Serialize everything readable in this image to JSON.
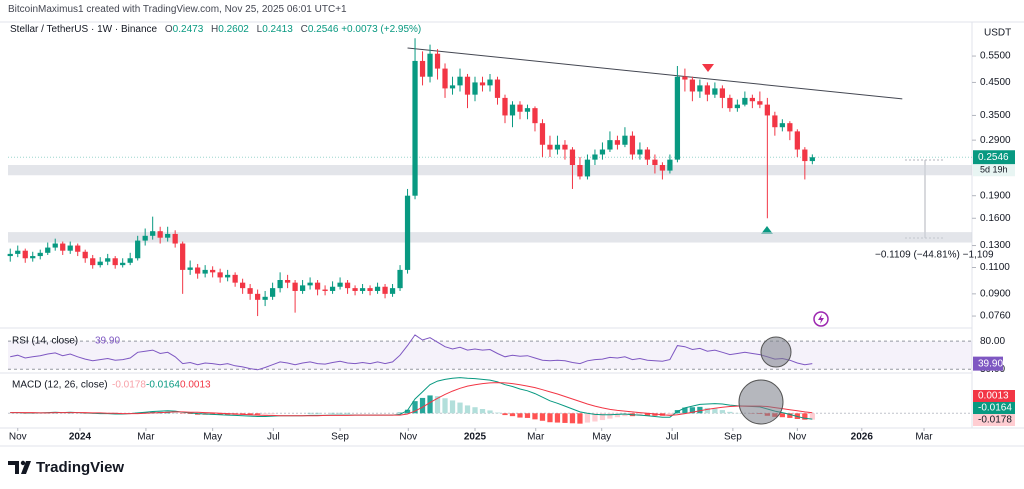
{
  "chart_data": {
    "type": "candlestick",
    "header": "BitcoinMaximus1 created with TradingView.com, Nov 25, 2025 06:01 UTC+1",
    "symbol": "Stellar / TetherUS · 1W · Binance",
    "ohlc_letters": [
      "O",
      "H",
      "L",
      "C"
    ],
    "change_label": "+0.0073 (+2.95%)",
    "currency": "USDT",
    "countdown": "5d 19h",
    "measure_label": "−0.1109 (−44.81%) −1,109",
    "brand": "TradingView",
    "log_scale": true,
    "grid": false,
    "up_color": "#089981",
    "down_color": "#f23645",
    "xlim": [
      -0.3,
      128.3
    ],
    "xticks": [
      {
        "value": 1,
        "label": "Nov"
      },
      {
        "value": 9.3,
        "label": "2024"
      },
      {
        "value": 18.1,
        "label": "Mar"
      },
      {
        "value": 27,
        "label": "May"
      },
      {
        "value": 35.1,
        "label": "Jul"
      },
      {
        "value": 44,
        "label": "Sep"
      },
      {
        "value": 53.1,
        "label": "Nov"
      },
      {
        "value": 62,
        "label": "2025"
      },
      {
        "value": 70.1,
        "label": "Mar"
      },
      {
        "value": 78.9,
        "label": "May"
      },
      {
        "value": 88.3,
        "label": "Jul"
      },
      {
        "value": 96.4,
        "label": "Sep"
      },
      {
        "value": 105,
        "label": "Nov"
      },
      {
        "value": 113.6,
        "label": "2026"
      },
      {
        "value": 121.9,
        "label": "Mar"
      }
    ],
    "ylim": [
      0.071,
      0.681
    ],
    "yticks": [
      {
        "value": 0.55,
        "label": "0.5500"
      },
      {
        "value": 0.45,
        "label": "0.4500"
      },
      {
        "value": 0.35,
        "label": "0.3500"
      },
      {
        "value": 0.29,
        "label": "0.2900"
      },
      {
        "value": 0.19,
        "label": "0.1900"
      },
      {
        "value": 0.16,
        "label": "0.1600"
      },
      {
        "value": 0.13,
        "label": "0.1300"
      },
      {
        "value": 0.11,
        "label": "0.1100"
      },
      {
        "value": 0.09,
        "label": "0.0900"
      },
      {
        "value": 0.076,
        "label": "0.0760"
      }
    ],
    "zones": [
      [
        0.222,
        0.24
      ],
      [
        0.133,
        0.144
      ]
    ],
    "trendline": {
      "x": [
        53,
        119
      ],
      "y": [
        0.585,
        0.397
      ]
    },
    "candles": [
      [
        0.12,
        0.127,
        0.115,
        0.122
      ],
      [
        0.122,
        0.13,
        0.119,
        0.125
      ],
      [
        0.125,
        0.127,
        0.114,
        0.118
      ],
      [
        0.118,
        0.124,
        0.115,
        0.12
      ],
      [
        0.12,
        0.126,
        0.117,
        0.123
      ],
      [
        0.123,
        0.133,
        0.121,
        0.128
      ],
      [
        0.128,
        0.137,
        0.125,
        0.132
      ],
      [
        0.132,
        0.134,
        0.121,
        0.125
      ],
      [
        0.125,
        0.134,
        0.122,
        0.13
      ],
      [
        0.13,
        0.132,
        0.12,
        0.124
      ],
      [
        0.124,
        0.126,
        0.114,
        0.118
      ],
      [
        0.118,
        0.121,
        0.109,
        0.112
      ],
      [
        0.112,
        0.119,
        0.11,
        0.115
      ],
      [
        0.115,
        0.122,
        0.112,
        0.118
      ],
      [
        0.118,
        0.12,
        0.109,
        0.112
      ],
      [
        0.112,
        0.118,
        0.11,
        0.114
      ],
      [
        0.114,
        0.123,
        0.112,
        0.118
      ],
      [
        0.118,
        0.14,
        0.116,
        0.135
      ],
      [
        0.135,
        0.148,
        0.13,
        0.14
      ],
      [
        0.14,
        0.162,
        0.136,
        0.145
      ],
      [
        0.145,
        0.15,
        0.132,
        0.138
      ],
      [
        0.138,
        0.15,
        0.134,
        0.142
      ],
      [
        0.142,
        0.146,
        0.128,
        0.132
      ],
      [
        0.132,
        0.134,
        0.09,
        0.108
      ],
      [
        0.108,
        0.116,
        0.104,
        0.11
      ],
      [
        0.11,
        0.113,
        0.101,
        0.105
      ],
      [
        0.105,
        0.112,
        0.102,
        0.108
      ],
      [
        0.108,
        0.111,
        0.102,
        0.106
      ],
      [
        0.106,
        0.109,
        0.098,
        0.102
      ],
      [
        0.102,
        0.108,
        0.099,
        0.104
      ],
      [
        0.104,
        0.106,
        0.095,
        0.098
      ],
      [
        0.098,
        0.101,
        0.09,
        0.094
      ],
      [
        0.094,
        0.097,
        0.086,
        0.09
      ],
      [
        0.09,
        0.093,
        0.076,
        0.086
      ],
      [
        0.086,
        0.092,
        0.082,
        0.088
      ],
      [
        0.088,
        0.098,
        0.086,
        0.094
      ],
      [
        0.094,
        0.106,
        0.091,
        0.1
      ],
      [
        0.1,
        0.104,
        0.094,
        0.098
      ],
      [
        0.098,
        0.1,
        0.078,
        0.092
      ],
      [
        0.092,
        0.1,
        0.09,
        0.096
      ],
      [
        0.096,
        0.102,
        0.093,
        0.098
      ],
      [
        0.098,
        0.1,
        0.089,
        0.093
      ],
      [
        0.093,
        0.096,
        0.089,
        0.092
      ],
      [
        0.092,
        0.099,
        0.09,
        0.095
      ],
      [
        0.095,
        0.102,
        0.093,
        0.098
      ],
      [
        0.098,
        0.1,
        0.09,
        0.094
      ],
      [
        0.094,
        0.096,
        0.089,
        0.092
      ],
      [
        0.092,
        0.097,
        0.09,
        0.094
      ],
      [
        0.094,
        0.096,
        0.089,
        0.092
      ],
      [
        0.092,
        0.098,
        0.09,
        0.095
      ],
      [
        0.095,
        0.097,
        0.087,
        0.09
      ],
      [
        0.09,
        0.097,
        0.088,
        0.094
      ],
      [
        0.094,
        0.112,
        0.092,
        0.108
      ],
      [
        0.108,
        0.2,
        0.105,
        0.19
      ],
      [
        0.19,
        0.63,
        0.185,
        0.53
      ],
      [
        0.53,
        0.57,
        0.44,
        0.47
      ],
      [
        0.47,
        0.6,
        0.45,
        0.56
      ],
      [
        0.56,
        0.58,
        0.46,
        0.5
      ],
      [
        0.5,
        0.52,
        0.4,
        0.43
      ],
      [
        0.43,
        0.47,
        0.41,
        0.44
      ],
      [
        0.44,
        0.5,
        0.42,
        0.47
      ],
      [
        0.47,
        0.48,
        0.37,
        0.41
      ],
      [
        0.41,
        0.47,
        0.39,
        0.45
      ],
      [
        0.45,
        0.47,
        0.42,
        0.44
      ],
      [
        0.44,
        0.48,
        0.42,
        0.46
      ],
      [
        0.46,
        0.47,
        0.38,
        0.4
      ],
      [
        0.4,
        0.41,
        0.33,
        0.35
      ],
      [
        0.35,
        0.39,
        0.32,
        0.38
      ],
      [
        0.38,
        0.39,
        0.34,
        0.36
      ],
      [
        0.36,
        0.38,
        0.34,
        0.37
      ],
      [
        0.37,
        0.375,
        0.31,
        0.33
      ],
      [
        0.33,
        0.34,
        0.255,
        0.28
      ],
      [
        0.28,
        0.3,
        0.255,
        0.27
      ],
      [
        0.27,
        0.3,
        0.26,
        0.28
      ],
      [
        0.28,
        0.29,
        0.25,
        0.27
      ],
      [
        0.27,
        0.275,
        0.2,
        0.24
      ],
      [
        0.24,
        0.255,
        0.215,
        0.22
      ],
      [
        0.22,
        0.26,
        0.215,
        0.25
      ],
      [
        0.25,
        0.27,
        0.24,
        0.26
      ],
      [
        0.26,
        0.285,
        0.25,
        0.27
      ],
      [
        0.27,
        0.31,
        0.265,
        0.29
      ],
      [
        0.29,
        0.3,
        0.27,
        0.28
      ],
      [
        0.28,
        0.32,
        0.275,
        0.3
      ],
      [
        0.3,
        0.31,
        0.25,
        0.26
      ],
      [
        0.26,
        0.285,
        0.25,
        0.27
      ],
      [
        0.27,
        0.275,
        0.24,
        0.25
      ],
      [
        0.25,
        0.26,
        0.225,
        0.24
      ],
      [
        0.24,
        0.245,
        0.215,
        0.23
      ],
      [
        0.23,
        0.26,
        0.225,
        0.25
      ],
      [
        0.25,
        0.51,
        0.245,
        0.47
      ],
      [
        0.47,
        0.5,
        0.42,
        0.46
      ],
      [
        0.46,
        0.47,
        0.39,
        0.42
      ],
      [
        0.42,
        0.46,
        0.4,
        0.44
      ],
      [
        0.44,
        0.45,
        0.39,
        0.41
      ],
      [
        0.41,
        0.45,
        0.4,
        0.43
      ],
      [
        0.43,
        0.44,
        0.37,
        0.4
      ],
      [
        0.4,
        0.41,
        0.36,
        0.37
      ],
      [
        0.37,
        0.395,
        0.36,
        0.38
      ],
      [
        0.38,
        0.42,
        0.375,
        0.4
      ],
      [
        0.4,
        0.41,
        0.37,
        0.39
      ],
      [
        0.39,
        0.42,
        0.37,
        0.38
      ],
      [
        0.38,
        0.4,
        0.16,
        0.35
      ],
      [
        0.35,
        0.36,
        0.3,
        0.32
      ],
      [
        0.32,
        0.34,
        0.31,
        0.33
      ],
      [
        0.33,
        0.335,
        0.29,
        0.31
      ],
      [
        0.31,
        0.315,
        0.255,
        0.27
      ],
      [
        0.27,
        0.275,
        0.215,
        0.2473
      ],
      [
        0.2473,
        0.2602,
        0.2413,
        0.2546
      ]
    ],
    "rsi": {
      "label": "RSI (14, close)",
      "color": "#7e57c2",
      "ylim": [
        25,
        98
      ],
      "yticks": [
        {
          "value": 80,
          "label": "80.00"
        },
        {
          "value": 30,
          "label": "30.00"
        }
      ],
      "last_value_label": "39.90",
      "values": [
        52,
        55,
        50,
        52,
        54,
        57,
        59,
        54,
        57,
        52,
        48,
        45,
        47,
        49,
        46,
        47,
        50,
        60,
        62,
        64,
        58,
        60,
        52,
        40,
        42,
        38,
        41,
        40,
        38,
        40,
        36,
        34,
        31,
        29,
        33,
        38,
        43,
        41,
        38,
        41,
        43,
        40,
        39,
        42,
        44,
        41,
        40,
        42,
        40,
        43,
        40,
        43,
        55,
        72,
        91,
        82,
        86,
        78,
        70,
        66,
        69,
        64,
        66,
        64,
        65,
        58,
        52,
        55,
        53,
        54,
        50,
        46,
        45,
        46,
        45,
        42,
        40,
        45,
        47,
        48,
        51,
        50,
        52,
        47,
        49,
        46,
        45,
        44,
        47,
        72,
        70,
        65,
        67,
        62,
        64,
        60,
        56,
        58,
        60,
        58,
        56,
        52,
        48,
        49,
        46,
        41,
        38,
        39.9
      ]
    },
    "macd": {
      "label": "MACD (12, 26, close)",
      "ylim": [
        -0.03,
        0.11
      ],
      "macd_color": "#089981",
      "signal_color": "#f23645",
      "hist": [
        0,
        0,
        -0.001,
        -0.001,
        0,
        0.001,
        0.001,
        0,
        0.001,
        0,
        -0.001,
        -0.001,
        -0.002,
        -0.001,
        -0.002,
        -0.001,
        0,
        0.002,
        0.003,
        0.004,
        0.004,
        0.004,
        0.002,
        -0.001,
        -0.002,
        -0.004,
        -0.004,
        -0.004,
        -0.004,
        -0.004,
        -0.004,
        -0.004,
        -0.004,
        -0.004,
        -0.003,
        -0.002,
        0,
        0,
        0,
        0,
        0.001,
        0.001,
        0,
        0.001,
        0.001,
        0.001,
        0,
        0,
        0,
        0,
        0,
        0,
        0.002,
        0.01,
        0.034,
        0.043,
        0.05,
        0.048,
        0.042,
        0.036,
        0.03,
        0.022,
        0.017,
        0.012,
        0.008,
        0.002,
        -0.005,
        -0.008,
        -0.012,
        -0.013,
        -0.017,
        -0.021,
        -0.025,
        -0.026,
        -0.027,
        -0.028,
        -0.029,
        -0.026,
        -0.023,
        -0.019,
        -0.015,
        -0.011,
        -0.008,
        -0.008,
        -0.007,
        -0.007,
        -0.007,
        -0.007,
        -0.005,
        0.009,
        0.016,
        0.017,
        0.018,
        0.015,
        0.013,
        0.009,
        0.004,
        0.001,
        0,
        -0.001,
        -0.002,
        -0.007,
        -0.01,
        -0.011,
        -0.013,
        -0.016,
        -0.018,
        -0.0178
      ],
      "macd": [
        0.002,
        0.002,
        0.001,
        0.001,
        0.001,
        0.002,
        0.003,
        0.002,
        0.003,
        0.002,
        0.001,
        0,
        -0.001,
        -0.001,
        -0.002,
        -0.002,
        -0.001,
        0.001,
        0.003,
        0.005,
        0.006,
        0.007,
        0.006,
        0.003,
        0.001,
        -0.001,
        -0.002,
        -0.003,
        -0.004,
        -0.005,
        -0.006,
        -0.007,
        -0.008,
        -0.009,
        -0.009,
        -0.008,
        -0.007,
        -0.007,
        -0.007,
        -0.007,
        -0.006,
        -0.006,
        -0.006,
        -0.005,
        -0.005,
        -0.005,
        -0.005,
        -0.005,
        -0.005,
        -0.005,
        -0.005,
        -0.005,
        -0.003,
        0.008,
        0.04,
        0.06,
        0.08,
        0.09,
        0.095,
        0.098,
        0.1,
        0.098,
        0.097,
        0.095,
        0.093,
        0.088,
        0.08,
        0.075,
        0.068,
        0.063,
        0.055,
        0.045,
        0.035,
        0.028,
        0.02,
        0.012,
        0.004,
        0,
        -0.003,
        -0.004,
        -0.004,
        -0.003,
        -0.002,
        -0.004,
        -0.005,
        -0.007,
        -0.009,
        -0.011,
        -0.011,
        0.005,
        0.015,
        0.02,
        0.025,
        0.026,
        0.027,
        0.026,
        0.023,
        0.021,
        0.02,
        0.019,
        0.018,
        0.012,
        0.006,
        0.002,
        -0.003,
        -0.009,
        -0.014,
        -0.0164
      ],
      "signal": [
        0.002,
        0.002,
        0.002,
        0.002,
        0.001,
        0.001,
        0.002,
        0.002,
        0.002,
        0.002,
        0.002,
        0.001,
        0.001,
        0,
        0,
        -0.001,
        -0.001,
        -0.001,
        0,
        0.001,
        0.002,
        0.003,
        0.004,
        0.004,
        0.003,
        0.003,
        0.002,
        0.001,
        0,
        -0.001,
        -0.002,
        -0.003,
        -0.004,
        -0.005,
        -0.006,
        -0.006,
        -0.007,
        -0.007,
        -0.007,
        -0.007,
        -0.007,
        -0.007,
        -0.006,
        -0.006,
        -0.006,
        -0.006,
        -0.005,
        -0.005,
        -0.005,
        -0.005,
        -0.005,
        -0.005,
        -0.005,
        -0.002,
        0.006,
        0.017,
        0.03,
        0.042,
        0.053,
        0.062,
        0.07,
        0.076,
        0.08,
        0.083,
        0.085,
        0.086,
        0.085,
        0.083,
        0.08,
        0.076,
        0.072,
        0.066,
        0.06,
        0.054,
        0.047,
        0.04,
        0.033,
        0.026,
        0.02,
        0.015,
        0.011,
        0.008,
        0.006,
        0.004,
        0.002,
        0,
        -0.002,
        -0.004,
        -0.006,
        -0.004,
        -0.001,
        0.003,
        0.007,
        0.011,
        0.014,
        0.017,
        0.019,
        0.02,
        0.02,
        0.02,
        0.02,
        0.019,
        0.016,
        0.013,
        0.01,
        0.007,
        0.004,
        0.0013
      ]
    }
  }
}
